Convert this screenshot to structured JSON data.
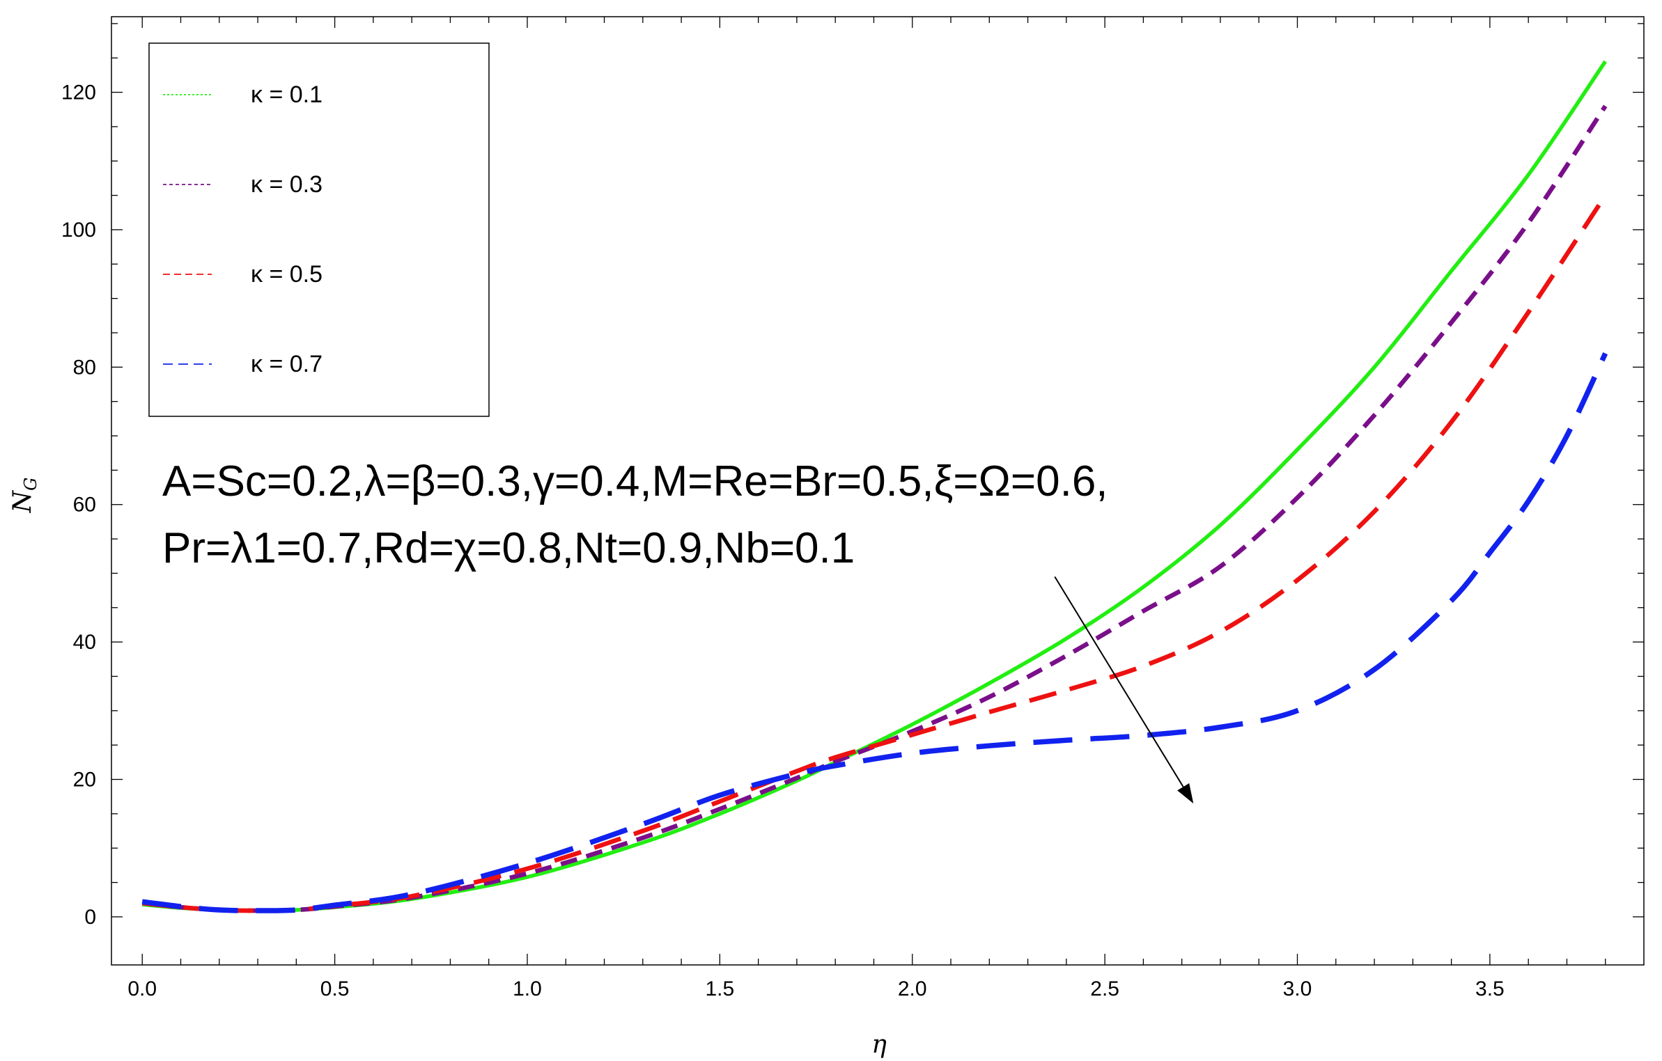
{
  "chart_data": {
    "type": "line",
    "title": "",
    "xlabel": "η",
    "ylabel_main": "N",
    "ylabel_sub": "G",
    "xlim": [
      -0.08,
      3.9
    ],
    "ylim": [
      -7,
      131
    ],
    "x_ticks": [
      0.0,
      0.5,
      1.0,
      1.5,
      2.0,
      2.5,
      3.0,
      3.5
    ],
    "x_tick_labels": [
      "0.0",
      "0.5",
      "1.0",
      "1.5",
      "2.0",
      "2.5",
      "3.0",
      "3.5"
    ],
    "y_ticks": [
      0,
      20,
      40,
      60,
      80,
      100,
      120
    ],
    "y_tick_labels": [
      "0",
      "20",
      "40",
      "60",
      "80",
      "100",
      "120"
    ],
    "legend_position": "top-left",
    "grid": false,
    "series": [
      {
        "name": "κ = 0.1",
        "color": "#22ee11",
        "style": "solid",
        "x": [
          0.0,
          0.1,
          0.2,
          0.3,
          0.4,
          0.5,
          0.7,
          1.0,
          1.3,
          1.5,
          1.7,
          1.8,
          2.0,
          2.2,
          2.4,
          2.6,
          2.8,
          3.0,
          3.2,
          3.4,
          3.6,
          3.8
        ],
        "y": [
          1.8,
          1.3,
          1.0,
          0.9,
          1.0,
          1.4,
          2.6,
          5.8,
          10.8,
          15.0,
          19.8,
          22.5,
          28.0,
          34.0,
          40.5,
          48.0,
          57.0,
          68.0,
          80.0,
          94.0,
          108.0,
          124.5
        ]
      },
      {
        "name": "κ = 0.3",
        "color": "#7a0f8a",
        "style": "dashed",
        "x": [
          0.0,
          0.1,
          0.2,
          0.3,
          0.4,
          0.5,
          0.7,
          1.0,
          1.3,
          1.5,
          1.7,
          1.8,
          2.0,
          2.2,
          2.4,
          2.6,
          2.8,
          3.0,
          3.2,
          3.4,
          3.6,
          3.8
        ],
        "y": [
          2.0,
          1.4,
          1.0,
          0.9,
          1.0,
          1.5,
          2.8,
          6.3,
          11.5,
          15.7,
          20.2,
          22.6,
          27.0,
          32.0,
          38.0,
          44.5,
          51.0,
          61.0,
          73.0,
          86.5,
          101.0,
          118.0
        ]
      },
      {
        "name": "κ = 0.5",
        "color": "#ee1111",
        "style": "dashed",
        "x": [
          0.0,
          0.1,
          0.2,
          0.3,
          0.4,
          0.5,
          0.7,
          1.0,
          1.3,
          1.5,
          1.7,
          1.8,
          2.0,
          2.2,
          2.4,
          2.6,
          2.8,
          3.0,
          3.2,
          3.4,
          3.6,
          3.8
        ],
        "y": [
          2.0,
          1.4,
          1.0,
          0.9,
          1.0,
          1.6,
          3.0,
          7.0,
          12.5,
          16.8,
          21.2,
          23.2,
          26.5,
          29.8,
          33.0,
          36.5,
          41.5,
          49.0,
          59.0,
          72.0,
          88.0,
          105.0
        ]
      },
      {
        "name": "κ = 0.7",
        "color": "#1122ee",
        "style": "dashed",
        "x": [
          0.0,
          0.1,
          0.2,
          0.3,
          0.4,
          0.5,
          0.7,
          1.0,
          1.3,
          1.5,
          1.7,
          1.8,
          2.0,
          2.2,
          2.4,
          2.6,
          2.8,
          3.0,
          3.2,
          3.4,
          3.5,
          3.6,
          3.7,
          3.8
        ],
        "y": [
          2.2,
          1.5,
          1.0,
          0.9,
          1.0,
          1.7,
          3.3,
          7.8,
          13.5,
          17.7,
          20.8,
          22.0,
          23.8,
          24.9,
          25.7,
          26.4,
          27.6,
          30.0,
          36.0,
          46.0,
          53.0,
          60.5,
          70.0,
          82.0
        ]
      }
    ],
    "annotation_lines": [
      "A=Sc=0.2,λ=β=0.3,γ=0.4,M=Re=Br=0.5,ξ=Ω=0.6,",
      "Pr=λ1=0.7,Rd=χ=0.8,Nt=0.9,Nb=0.1"
    ],
    "arrow": {
      "from": [
        2.37,
        49.5
      ],
      "to": [
        2.73,
        16.5
      ],
      "color": "#000000"
    }
  }
}
